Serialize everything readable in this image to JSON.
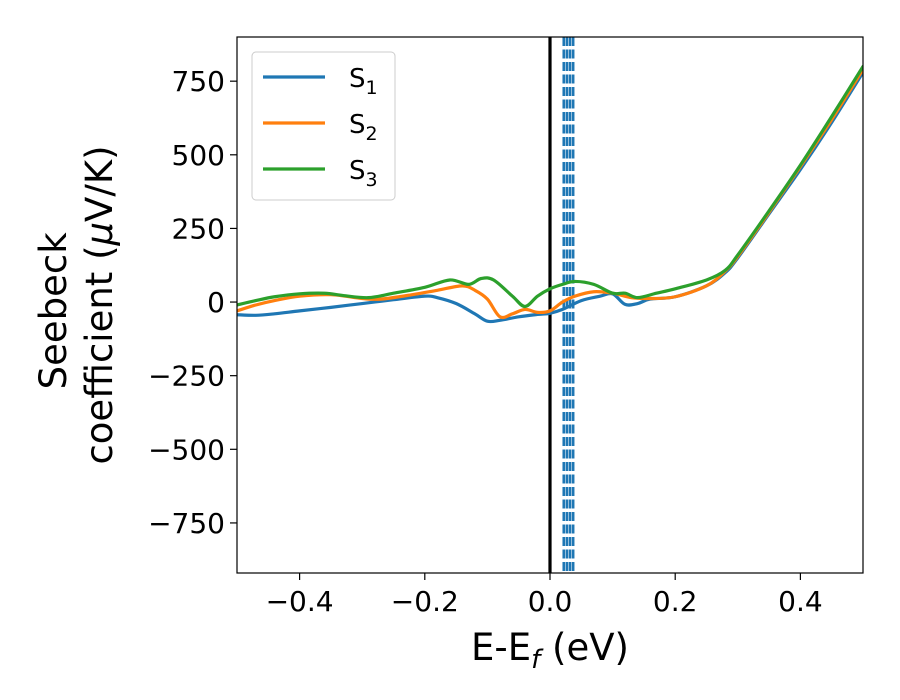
{
  "chart_data": {
    "type": "line",
    "xlabel": {
      "main": "E-E",
      "sub": "f",
      "tail": " (eV)"
    },
    "ylabel": {
      "line1": "Seebeck",
      "line2_a": "coefficient  (",
      "mu": "μ",
      "line2_b": "V/K)"
    },
    "xlim": [
      -0.5,
      0.5
    ],
    "ylim": [
      -920,
      900
    ],
    "xticks": [
      -0.4,
      -0.2,
      0.0,
      0.2,
      0.4
    ],
    "xtick_labels": [
      "−0.4",
      "−0.2",
      "0.0",
      "0.2",
      "0.4"
    ],
    "yticks": [
      750,
      500,
      250,
      0,
      -250,
      -500,
      -750
    ],
    "ytick_labels": [
      "750",
      "500",
      "250",
      "0",
      "−250",
      "−500",
      "−750"
    ],
    "grid": false,
    "legend_placement": "top-left",
    "vline_solid": {
      "x": 0.0,
      "color": "#000000"
    },
    "vlines_dashed": {
      "x": [
        0.022,
        0.027,
        0.032,
        0.037
      ],
      "color": "#1f77b4"
    },
    "series": [
      {
        "name": "S",
        "sub": "1",
        "color": "#1f77b4",
        "points": [
          [
            -0.5,
            -43
          ],
          [
            -0.47,
            -45
          ],
          [
            -0.44,
            -40
          ],
          [
            -0.4,
            -30
          ],
          [
            -0.35,
            -18
          ],
          [
            -0.3,
            -5
          ],
          [
            -0.25,
            8
          ],
          [
            -0.2,
            20
          ],
          [
            -0.18,
            15
          ],
          [
            -0.15,
            -5
          ],
          [
            -0.12,
            -40
          ],
          [
            -0.1,
            -65
          ],
          [
            -0.08,
            -62
          ],
          [
            -0.05,
            -50
          ],
          [
            -0.02,
            -42
          ],
          [
            0.0,
            -38
          ],
          [
            0.02,
            -25
          ],
          [
            0.05,
            5
          ],
          [
            0.08,
            20
          ],
          [
            0.1,
            28
          ],
          [
            0.12,
            -8
          ],
          [
            0.14,
            -5
          ],
          [
            0.16,
            10
          ],
          [
            0.2,
            18
          ],
          [
            0.25,
            55
          ],
          [
            0.28,
            100
          ],
          [
            0.3,
            150
          ],
          [
            0.35,
            300
          ],
          [
            0.4,
            450
          ],
          [
            0.45,
            610
          ],
          [
            0.5,
            780
          ]
        ]
      },
      {
        "name": "S",
        "sub": "2",
        "color": "#ff7f0e",
        "points": [
          [
            -0.5,
            -30
          ],
          [
            -0.47,
            -10
          ],
          [
            -0.44,
            5
          ],
          [
            -0.4,
            20
          ],
          [
            -0.35,
            25
          ],
          [
            -0.3,
            12
          ],
          [
            -0.27,
            10
          ],
          [
            -0.22,
            25
          ],
          [
            -0.18,
            40
          ],
          [
            -0.14,
            55
          ],
          [
            -0.12,
            40
          ],
          [
            -0.1,
            10
          ],
          [
            -0.08,
            -50
          ],
          [
            -0.06,
            -40
          ],
          [
            -0.04,
            -25
          ],
          [
            -0.02,
            -35
          ],
          [
            0.0,
            -30
          ],
          [
            0.02,
            0
          ],
          [
            0.04,
            20
          ],
          [
            0.07,
            35
          ],
          [
            0.1,
            30
          ],
          [
            0.13,
            15
          ],
          [
            0.16,
            12
          ],
          [
            0.2,
            18
          ],
          [
            0.25,
            55
          ],
          [
            0.28,
            105
          ],
          [
            0.3,
            155
          ],
          [
            0.35,
            305
          ],
          [
            0.4,
            460
          ],
          [
            0.45,
            620
          ],
          [
            0.5,
            790
          ]
        ]
      },
      {
        "name": "S",
        "sub": "3",
        "color": "#2ca02c",
        "points": [
          [
            -0.5,
            -10
          ],
          [
            -0.47,
            5
          ],
          [
            -0.44,
            18
          ],
          [
            -0.4,
            28
          ],
          [
            -0.36,
            30
          ],
          [
            -0.33,
            22
          ],
          [
            -0.29,
            15
          ],
          [
            -0.25,
            30
          ],
          [
            -0.2,
            50
          ],
          [
            -0.16,
            75
          ],
          [
            -0.13,
            60
          ],
          [
            -0.11,
            80
          ],
          [
            -0.09,
            75
          ],
          [
            -0.06,
            20
          ],
          [
            -0.04,
            -15
          ],
          [
            -0.02,
            20
          ],
          [
            0.0,
            45
          ],
          [
            0.02,
            60
          ],
          [
            0.04,
            70
          ],
          [
            0.07,
            60
          ],
          [
            0.1,
            30
          ],
          [
            0.12,
            30
          ],
          [
            0.14,
            15
          ],
          [
            0.17,
            30
          ],
          [
            0.2,
            45
          ],
          [
            0.25,
            75
          ],
          [
            0.28,
            108
          ],
          [
            0.3,
            160
          ],
          [
            0.35,
            310
          ],
          [
            0.4,
            465
          ],
          [
            0.45,
            630
          ],
          [
            0.5,
            800
          ]
        ]
      }
    ]
  }
}
